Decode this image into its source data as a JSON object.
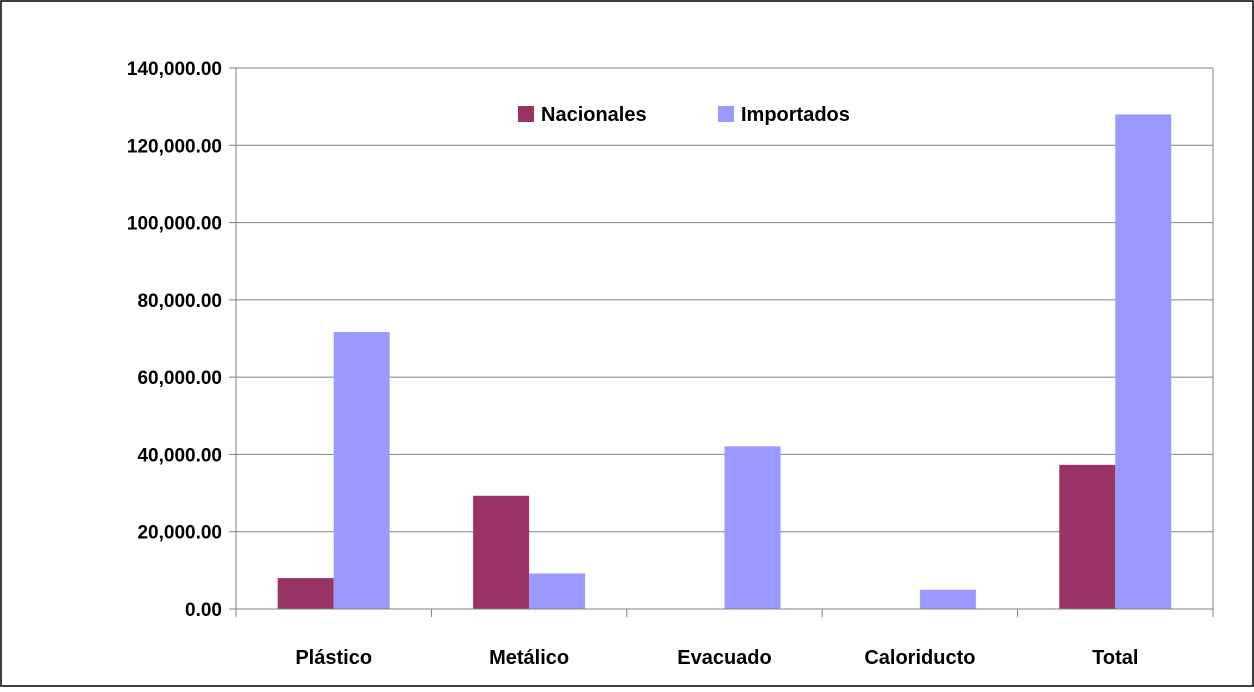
{
  "chart_data": {
    "type": "bar",
    "title": "",
    "xlabel": "",
    "ylabel": "",
    "categories": [
      "Plástico",
      "Metálico",
      "Evacuado",
      "Caloriducto",
      "Total"
    ],
    "series": [
      {
        "name": "Nacionales",
        "color": "#993366",
        "values": [
          8000,
          29300,
          0,
          0,
          37300
        ]
      },
      {
        "name": "Importados",
        "color": "#9999ff",
        "values": [
          71700,
          9200,
          42100,
          5000,
          128000
        ]
      }
    ],
    "ylim": [
      0,
      140000
    ],
    "yticks": [
      0,
      20000,
      40000,
      60000,
      80000,
      100000,
      120000,
      140000
    ],
    "ytick_labels": [
      "0.00",
      "20,000.00",
      "40,000.00",
      "60,000.00",
      "80,000.00",
      "100,000.00",
      "120,000.00",
      "140,000.00"
    ],
    "grid": true,
    "legend_position": "top-center"
  }
}
